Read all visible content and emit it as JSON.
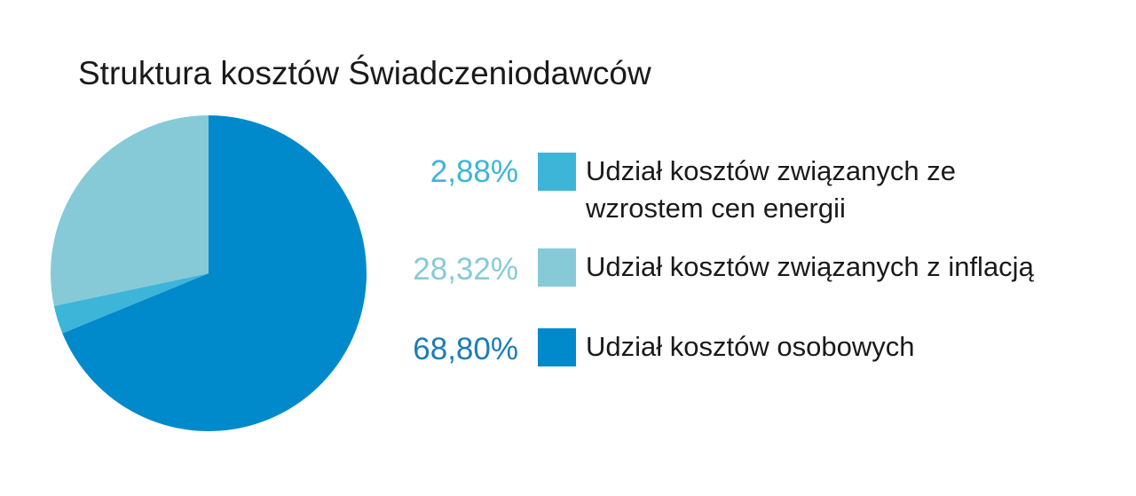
{
  "chart_data": {
    "type": "pie",
    "title": "Struktura kosztów Świadczeniodawców",
    "slices": [
      {
        "label_line1": "Udział kosztów związanych ze",
        "label_line2": "wzrostem cen energii",
        "value": 2.88,
        "value_label": "2,88%",
        "color": "#3db5d9"
      },
      {
        "label_line1": "Udział kosztów związanych z inflacją",
        "label_line2": "",
        "value": 28.32,
        "value_label": "28,32%",
        "color": "#86cad7"
      },
      {
        "label_line1": "Udział kosztów osobowych",
        "label_line2": "",
        "value": 68.8,
        "value_label": "68,80%",
        "color": "#0089cb"
      }
    ],
    "pie_draw_order": [
      2,
      0,
      1
    ],
    "start_angle_deg": 0,
    "direction": "clockwise",
    "legend_position": "right"
  }
}
